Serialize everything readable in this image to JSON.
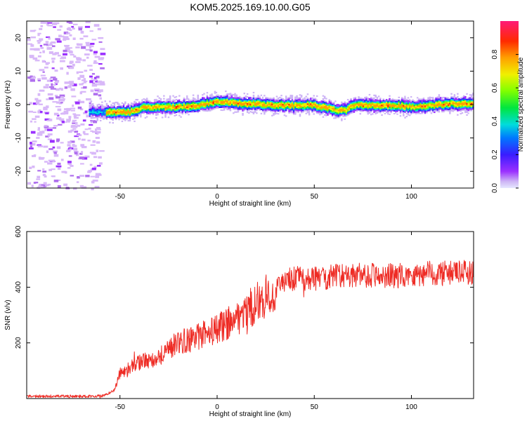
{
  "page": {
    "title": "KOM5.2025.169.10.00.G05"
  },
  "colors": {
    "snr_line": "#ee2b24",
    "axes": "#000000",
    "background": "#ffffff"
  },
  "chart_data": [
    {
      "type": "heatmap",
      "xlabel": "Height of straight line (km)",
      "ylabel": "Frequency (Hz)",
      "xlim": [
        -98,
        132
      ],
      "ylim": [
        -25,
        25
      ],
      "xticks": [
        -50,
        0,
        50,
        100
      ],
      "yticks": [
        -20,
        -10,
        0,
        10,
        20
      ],
      "colorbar": {
        "label": "Normalized spectral amplitude",
        "range": [
          0,
          1
        ],
        "ticks": [
          "0.0",
          "0.2",
          "0.4",
          "0.6",
          "0.8"
        ],
        "colormap": "rainbow (purple to red)"
      },
      "ridge_frequency_hz": {
        "x": [
          -65,
          -55,
          -45,
          -38,
          -30,
          -20,
          -10,
          0,
          5,
          10,
          20,
          30,
          40,
          50,
          58,
          62,
          66,
          70,
          80,
          90,
          100,
          110,
          120,
          132
        ],
        "y": [
          -2,
          -2,
          -2,
          -0.5,
          -0.5,
          -0.5,
          0,
          1,
          1,
          0.5,
          0.5,
          0,
          0,
          0,
          -1,
          -1.5,
          -1.5,
          0,
          0,
          0,
          -0.5,
          0,
          0.5,
          0.5
        ]
      },
      "noise_region_x": [
        -98,
        -60
      ]
    },
    {
      "type": "line",
      "xlabel": "Height of straight line (km)",
      "ylabel": "SNR (v/v)",
      "xlim": [
        -98,
        132
      ],
      "ylim": [
        0,
        600
      ],
      "xticks": [
        -50,
        0,
        50,
        100
      ],
      "yticks": [
        200,
        400,
        600
      ],
      "series": [
        {
          "trend_x": [
            -98,
            -70,
            -58,
            -53,
            -50,
            -45,
            -40,
            -30,
            -25,
            -20,
            -10,
            0,
            10,
            20,
            30,
            35,
            40,
            50,
            60,
            70,
            80,
            90,
            100,
            110,
            120,
            132
          ],
          "trend_y": [
            8,
            8,
            10,
            30,
            90,
            110,
            130,
            150,
            180,
            200,
            220,
            250,
            290,
            340,
            390,
            420,
            430,
            430,
            440,
            440,
            445,
            440,
            445,
            450,
            450,
            455
          ]
        }
      ]
    }
  ]
}
